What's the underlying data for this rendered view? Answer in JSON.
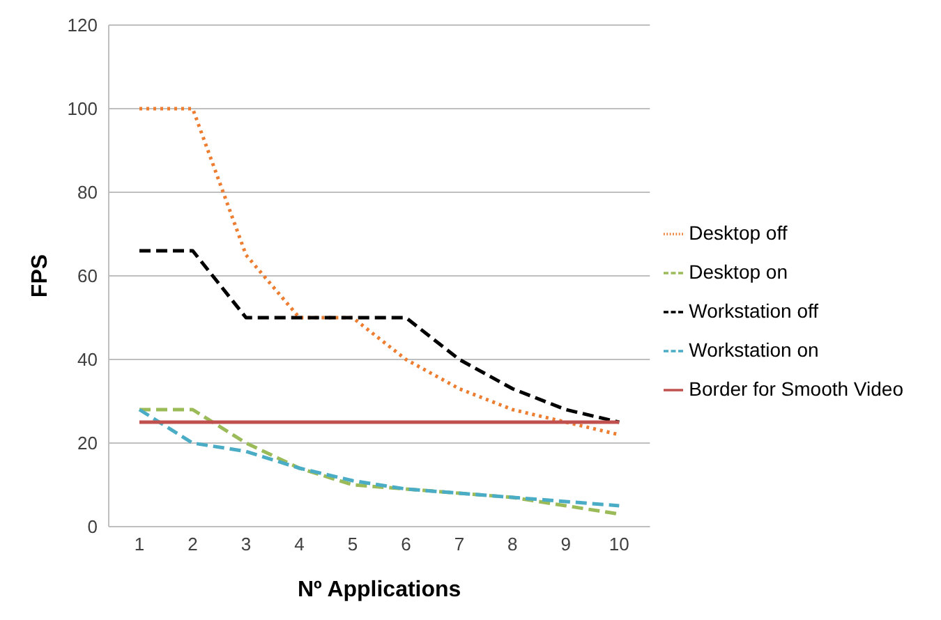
{
  "chart_data": {
    "type": "line",
    "xlabel": "Nº Applications",
    "ylabel": "FPS",
    "categories": [
      "1",
      "2",
      "3",
      "4",
      "5",
      "6",
      "7",
      "8",
      "9",
      "10"
    ],
    "series": [
      {
        "name": "Desktop off",
        "color": "#ed7d31",
        "line_style": "dotted",
        "values": [
          100,
          100,
          65,
          50,
          50,
          40,
          33,
          28,
          25,
          22
        ]
      },
      {
        "name": "Desktop on",
        "color": "#9bbb59",
        "line_style": "dashed",
        "values": [
          28,
          28,
          20,
          14,
          10,
          9,
          8,
          7,
          5,
          3
        ]
      },
      {
        "name": "Workstation off",
        "color": "#000000",
        "line_style": "dashed",
        "values": [
          66,
          66,
          50,
          50,
          50,
          50,
          40,
          33,
          28,
          25
        ]
      },
      {
        "name": "Workstation on",
        "color": "#4bacc6",
        "line_style": "dashed",
        "values": [
          28,
          20,
          18,
          14,
          11,
          9,
          8,
          7,
          6,
          5
        ]
      },
      {
        "name": "Border for Smooth Video",
        "color": "#c0504d",
        "line_style": "solid",
        "values": [
          25,
          25,
          25,
          25,
          25,
          25,
          25,
          25,
          25,
          25
        ]
      }
    ],
    "ylim": [
      0,
      120
    ],
    "yticks": [
      0,
      20,
      40,
      60,
      80,
      100,
      120
    ],
    "grid": "y",
    "legend": "right",
    "marker": "none"
  }
}
